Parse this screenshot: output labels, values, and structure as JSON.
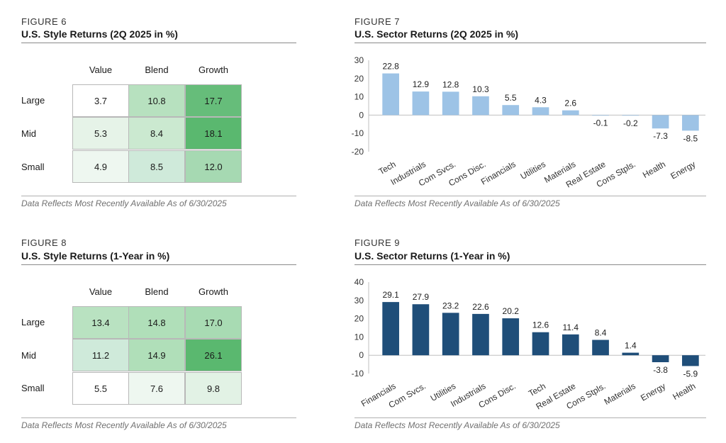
{
  "fig6": {
    "label": "FIGURE 6",
    "title": "U.S. Style Returns (2Q 2025 in %)",
    "note": "Data Reflects Most Recently Available As of 6/30/2025",
    "col_headers": [
      "Value",
      "Blend",
      "Growth"
    ],
    "row_headers": [
      "Large",
      "Mid",
      "Small"
    ],
    "cells": [
      [
        "3.7",
        "10.8",
        "17.7"
      ],
      [
        "5.3",
        "8.4",
        "18.1"
      ],
      [
        "4.9",
        "8.5",
        "12.0"
      ]
    ],
    "cell_colors": [
      [
        "#ffffff",
        "#b7e1bf",
        "#66bd7a"
      ],
      [
        "#e6f3e8",
        "#cbe9d0",
        "#5ab86f"
      ],
      [
        "#eef7f0",
        "#cfeada",
        "#a6d9b2"
      ]
    ]
  },
  "fig8": {
    "label": "FIGURE 8",
    "title": "U.S. Style Returns (1-Year in %)",
    "note": "Data Reflects Most Recently Available As of 6/30/2025",
    "col_headers": [
      "Value",
      "Blend",
      "Growth"
    ],
    "row_headers": [
      "Large",
      "Mid",
      "Small"
    ],
    "cells": [
      [
        "13.4",
        "14.8",
        "17.0"
      ],
      [
        "11.2",
        "14.9",
        "26.1"
      ],
      [
        "5.5",
        "7.6",
        "9.8"
      ]
    ],
    "cell_colors": [
      [
        "#b9e2c1",
        "#b0dfb9",
        "#a8dbb3"
      ],
      [
        "#cfeada",
        "#b0dfb9",
        "#5ab86f"
      ],
      [
        "#ffffff",
        "#eef7f0",
        "#e2f2e5"
      ]
    ]
  },
  "chart_data": [
    {
      "type": "bar",
      "id": "fig7",
      "label": "FIGURE 7",
      "title": "U.S. Sector Returns (2Q 2025 in %)",
      "note": "Data Reflects Most Recently Available As of 6/30/2025",
      "categories": [
        "Tech",
        "Industrials",
        "Com Svcs.",
        "Cons Disc.",
        "Financials",
        "Utilities",
        "Materials",
        "Real Estate",
        "Cons Stpls.",
        "Health",
        "Energy"
      ],
      "values": [
        22.8,
        12.9,
        12.8,
        10.3,
        5.5,
        4.3,
        2.6,
        -0.1,
        -0.2,
        -7.3,
        -8.5
      ],
      "value_labels": [
        "22.8",
        "12.9",
        "12.8",
        "10.3",
        "5.5",
        "4.3",
        "2.6",
        "-0.1",
        "-0.2",
        "-7.3",
        "-8.5"
      ],
      "ylim": [
        -20,
        30
      ],
      "yticks": [
        -20,
        -10,
        0,
        10,
        20,
        30
      ],
      "ytick_labels": [
        "-20",
        "-10",
        "0",
        "10",
        "20",
        "30"
      ],
      "bar_color": "#9dc3e6"
    },
    {
      "type": "bar",
      "id": "fig9",
      "label": "FIGURE 9",
      "title": "U.S. Sector Returns (1-Year in %)",
      "note": "Data Reflects Most Recently Available As of 6/30/2025",
      "categories": [
        "Financials",
        "Com Svcs.",
        "Utilities",
        "Industrials",
        "Cons Disc.",
        "Tech",
        "Real Estate",
        "Cons Stpls.",
        "Materials",
        "Energy",
        "Health"
      ],
      "values": [
        29.1,
        27.9,
        23.2,
        22.6,
        20.2,
        12.6,
        11.4,
        8.4,
        1.4,
        -3.8,
        -5.9
      ],
      "value_labels": [
        "29.1",
        "27.9",
        "23.2",
        "22.6",
        "20.2",
        "12.6",
        "11.4",
        "8.4",
        "1.4",
        "-3.8",
        "-5.9"
      ],
      "ylim": [
        -10,
        40
      ],
      "yticks": [
        -10,
        0,
        10,
        20,
        30,
        40
      ],
      "ytick_labels": [
        "-10",
        "0",
        "10",
        "20",
        "30",
        "40"
      ],
      "bar_color": "#1f4e79"
    }
  ]
}
